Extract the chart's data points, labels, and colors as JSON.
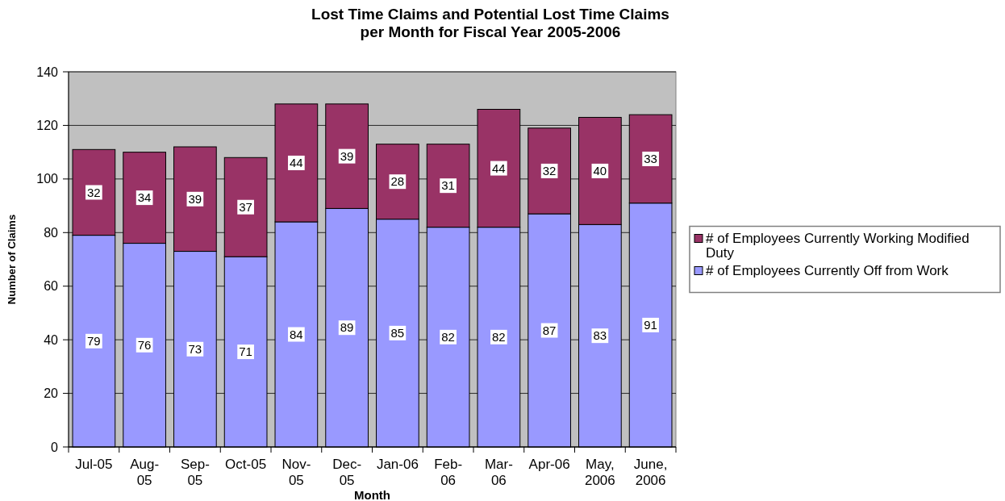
{
  "chart_data": {
    "type": "bar",
    "title": "Lost Time Claims and Potential Lost Time Claims per Month for Fiscal Year 2005-2006",
    "xlabel": "Month",
    "ylabel": "Number of Claims",
    "categories": [
      "Jul-05",
      "Aug-05",
      "Sep-05",
      "Oct-05",
      "Nov-05",
      "Dec-05",
      "Jan-06",
      "Feb-06",
      "Mar-06",
      "Apr-06",
      "May, 2006",
      "June, 2006"
    ],
    "series": [
      {
        "name": "# of Employees Currently Off from Work",
        "color": "#9999ff",
        "values": [
          79,
          76,
          73,
          71,
          84,
          89,
          85,
          82,
          82,
          87,
          83,
          91
        ]
      },
      {
        "name": "# of Employees Currently Working Modified Duty",
        "color": "#993366",
        "values": [
          32,
          34,
          39,
          37,
          44,
          39,
          28,
          31,
          44,
          32,
          40,
          33
        ]
      }
    ],
    "stacked": true,
    "ylim": [
      0,
      140
    ],
    "yticks": [
      0,
      20,
      40,
      60,
      80,
      100,
      120,
      140
    ],
    "grid": "y",
    "legend": "right",
    "data_labels": true
  }
}
